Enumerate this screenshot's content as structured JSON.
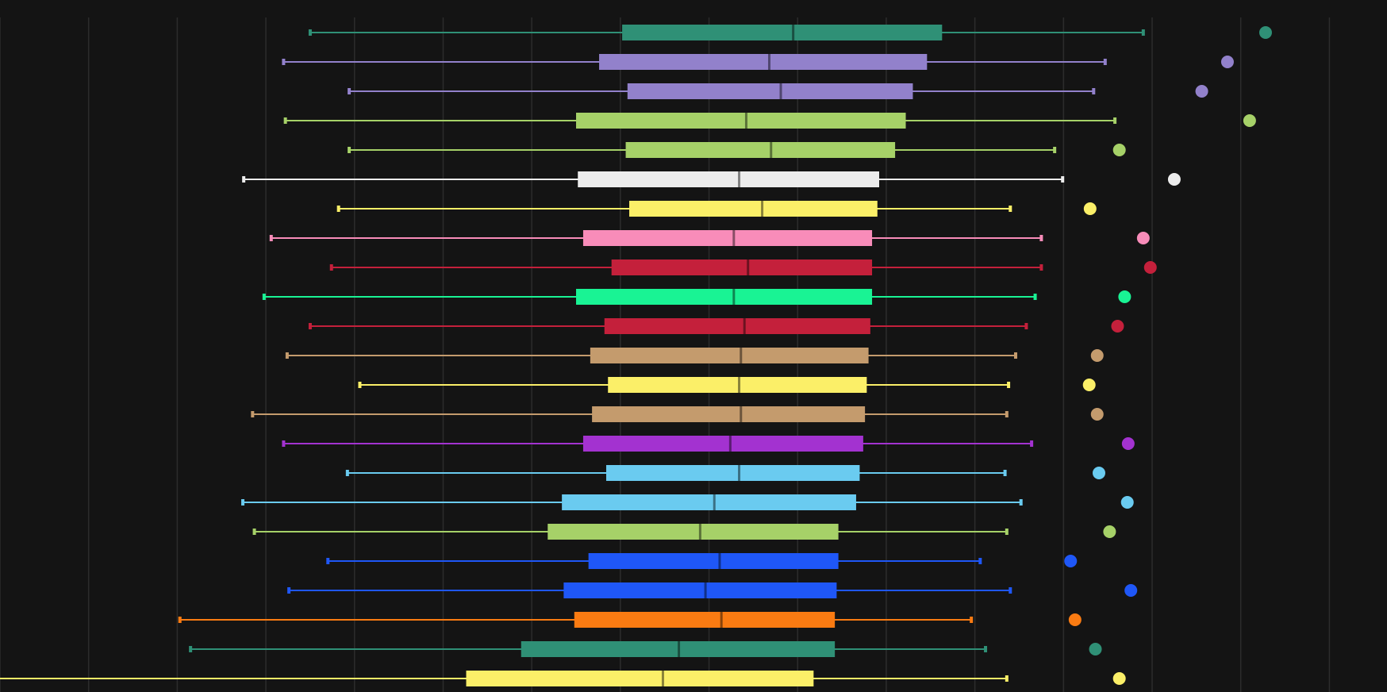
{
  "chart_data": {
    "type": "box",
    "orientation": "horizontal",
    "title": "",
    "xlabel": "",
    "ylabel": "",
    "background": "#141414",
    "grid": true,
    "grid_color": "#2c2c2c",
    "legend": "none",
    "xlim": [
      0.25,
      15.9
    ],
    "x_grid": [
      0.25,
      1.25,
      2.25,
      3.25,
      4.25,
      5.25,
      6.25,
      7.25,
      8.25,
      9.25,
      10.25,
      11.25,
      12.25,
      13.25,
      14.25,
      15.25
    ],
    "series": [
      {
        "color": "#2f9076",
        "whisker_low": 3.75,
        "q1": 7.27,
        "median": 9.2,
        "q3": 10.88,
        "whisker_high": 13.15,
        "outliers": [
          14.53
        ]
      },
      {
        "color": "#9281cb",
        "whisker_low": 3.45,
        "q1": 7.01,
        "median": 8.93,
        "q3": 10.71,
        "whisker_high": 12.72,
        "outliers": [
          14.1
        ]
      },
      {
        "color": "#9281cb",
        "whisker_low": 4.19,
        "q1": 7.33,
        "median": 9.06,
        "q3": 10.55,
        "whisker_high": 12.59,
        "outliers": [
          13.81
        ]
      },
      {
        "color": "#a6d168",
        "whisker_low": 3.47,
        "q1": 6.75,
        "median": 8.67,
        "q3": 10.47,
        "whisker_high": 12.83,
        "outliers": [
          14.35
        ]
      },
      {
        "color": "#a6d168",
        "whisker_low": 4.19,
        "q1": 7.31,
        "median": 8.95,
        "q3": 10.35,
        "whisker_high": 12.15,
        "outliers": [
          12.88
        ]
      },
      {
        "color": "#ececec",
        "whisker_low": 3.0,
        "q1": 6.77,
        "median": 8.59,
        "q3": 10.17,
        "whisker_high": 12.24,
        "outliers": [
          13.5
        ]
      },
      {
        "color": "#fbef68",
        "whisker_low": 4.07,
        "q1": 7.35,
        "median": 8.85,
        "q3": 10.15,
        "whisker_high": 11.65,
        "outliers": [
          12.55
        ]
      },
      {
        "color": "#f88cb9",
        "whisker_low": 3.31,
        "q1": 6.83,
        "median": 8.53,
        "q3": 10.09,
        "whisker_high": 12.0,
        "outliers": [
          13.15
        ]
      },
      {
        "color": "#c4203b",
        "whisker_low": 3.99,
        "q1": 7.15,
        "median": 8.69,
        "q3": 10.09,
        "whisker_high": 12.0,
        "outliers": [
          13.23
        ]
      },
      {
        "color": "#19f394",
        "whisker_low": 3.23,
        "q1": 6.75,
        "median": 8.53,
        "q3": 10.09,
        "whisker_high": 11.93,
        "outliers": [
          12.94
        ]
      },
      {
        "color": "#c4203b",
        "whisker_low": 3.75,
        "q1": 7.07,
        "median": 8.65,
        "q3": 10.07,
        "whisker_high": 11.83,
        "outliers": [
          12.86
        ]
      },
      {
        "color": "#c49b6d",
        "whisker_low": 3.49,
        "q1": 6.91,
        "median": 8.61,
        "q3": 10.05,
        "whisker_high": 11.71,
        "outliers": [
          12.63
        ]
      },
      {
        "color": "#fbef68",
        "whisker_low": 4.31,
        "q1": 7.11,
        "median": 8.59,
        "q3": 10.03,
        "whisker_high": 11.63,
        "outliers": [
          12.54
        ]
      },
      {
        "color": "#c49b6d",
        "whisker_low": 3.1,
        "q1": 6.93,
        "median": 8.61,
        "q3": 10.01,
        "whisker_high": 11.61,
        "outliers": [
          12.63
        ]
      },
      {
        "color": "#a332d0",
        "whisker_low": 3.45,
        "q1": 6.83,
        "median": 8.49,
        "q3": 9.99,
        "whisker_high": 11.89,
        "outliers": [
          12.98
        ]
      },
      {
        "color": "#6acbf0",
        "whisker_low": 4.17,
        "q1": 7.09,
        "median": 8.59,
        "q3": 9.95,
        "whisker_high": 11.59,
        "outliers": [
          12.65
        ]
      },
      {
        "color": "#6acbf0",
        "whisker_low": 2.99,
        "q1": 6.59,
        "median": 8.31,
        "q3": 9.91,
        "whisker_high": 11.77,
        "outliers": [
          12.97
        ]
      },
      {
        "color": "#a6d168",
        "whisker_low": 3.12,
        "q1": 6.43,
        "median": 8.15,
        "q3": 9.71,
        "whisker_high": 11.61,
        "outliers": [
          12.77
        ]
      },
      {
        "color": "#1f57f7",
        "whisker_low": 3.95,
        "q1": 6.89,
        "median": 8.37,
        "q3": 9.71,
        "whisker_high": 11.31,
        "outliers": [
          12.33
        ]
      },
      {
        "color": "#1f57f7",
        "whisker_low": 3.51,
        "q1": 6.61,
        "median": 8.21,
        "q3": 9.69,
        "whisker_high": 11.65,
        "outliers": [
          13.01
        ]
      },
      {
        "color": "#fa7b12",
        "whisker_low": 2.28,
        "q1": 6.73,
        "median": 8.39,
        "q3": 9.67,
        "whisker_high": 11.21,
        "outliers": [
          12.38
        ]
      },
      {
        "color": "#2f9076",
        "whisker_low": 2.4,
        "q1": 6.13,
        "median": 7.91,
        "q3": 9.67,
        "whisker_high": 11.37,
        "outliers": [
          12.61
        ]
      },
      {
        "color": "#fbef68",
        "whisker_low": 0.0,
        "q1": 5.51,
        "median": 7.73,
        "q3": 9.43,
        "whisker_high": 11.61,
        "outliers": [
          12.88
        ]
      }
    ]
  }
}
